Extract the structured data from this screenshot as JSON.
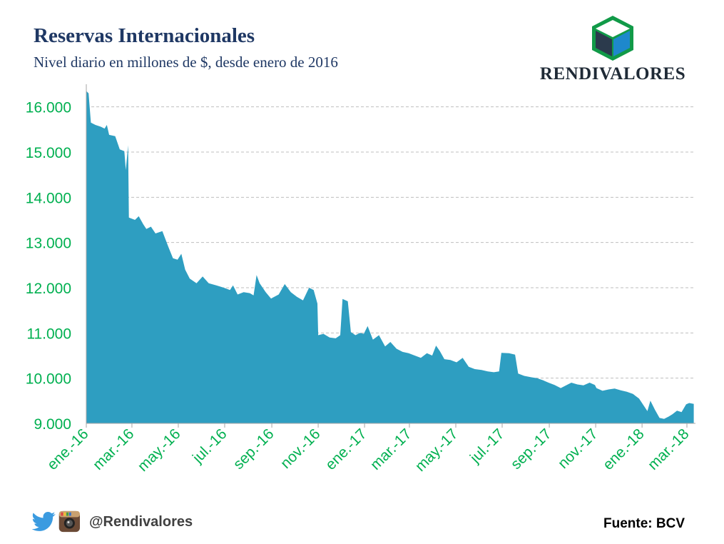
{
  "header": {
    "title": "Reservas Internacionales",
    "subtitle": "Nivel diario en millones de $, desde enero de 2016"
  },
  "logo": {
    "text": "RENDIVALORES",
    "icon": "cube-logo-icon"
  },
  "footer": {
    "handle": "@Rendivalores",
    "source": "Fuente: BCV",
    "icons": [
      "twitter-icon",
      "instagram-icon"
    ]
  },
  "colors": {
    "area": "#2e9ec1",
    "tick_labels": "#00b050",
    "title": "#1f3864",
    "grid": "#bfbfbf"
  },
  "chart_data": {
    "type": "area",
    "title": "Reservas Internacionales",
    "subtitle": "Nivel diario en millones de $, desde enero de 2016",
    "xlabel": "",
    "ylabel": "",
    "ylim": [
      9000,
      16500
    ],
    "xlim": [
      "2016-01-01",
      "2018-03-10"
    ],
    "grid": "horizontal dashed",
    "legend": "none",
    "y_ticks": [
      9000,
      10000,
      11000,
      12000,
      13000,
      14000,
      15000,
      16000
    ],
    "y_tick_labels": [
      "9.000",
      "10.000",
      "11.000",
      "12.000",
      "13.000",
      "14.000",
      "15.000",
      "16.000"
    ],
    "x_ticks": [
      "2016-01-01",
      "2016-03-01",
      "2016-05-01",
      "2016-07-01",
      "2016-09-01",
      "2016-11-01",
      "2017-01-01",
      "2017-03-01",
      "2017-05-01",
      "2017-07-01",
      "2017-09-01",
      "2017-11-01",
      "2018-01-01",
      "2018-03-01"
    ],
    "x_tick_labels": [
      "ene.-16",
      "mar.-16",
      "may.-16",
      "jul.-16",
      "sep.-16",
      "nov.-16",
      "ene.-17",
      "mar.-17",
      "may.-17",
      "jul.-17",
      "sep.-17",
      "nov.-17",
      "ene.-18",
      "mar.-18"
    ],
    "series": [
      {
        "points": [
          [
            "2016-01-01",
            16350
          ],
          [
            "2016-01-04",
            16300
          ],
          [
            "2016-01-07",
            15650
          ],
          [
            "2016-01-13",
            15600
          ],
          [
            "2016-01-20",
            15560
          ],
          [
            "2016-01-25",
            15520
          ],
          [
            "2016-01-28",
            15600
          ],
          [
            "2016-01-31",
            15380
          ],
          [
            "2016-02-08",
            15350
          ],
          [
            "2016-02-14",
            15060
          ],
          [
            "2016-02-20",
            15020
          ],
          [
            "2016-02-22",
            14600
          ],
          [
            "2016-02-25",
            15150
          ],
          [
            "2016-02-26",
            13550
          ],
          [
            "2016-03-05",
            13500
          ],
          [
            "2016-03-10",
            13580
          ],
          [
            "2016-03-16",
            13400
          ],
          [
            "2016-03-20",
            13300
          ],
          [
            "2016-03-26",
            13350
          ],
          [
            "2016-04-01",
            13200
          ],
          [
            "2016-04-10",
            13250
          ],
          [
            "2016-04-18",
            12900
          ],
          [
            "2016-04-24",
            12650
          ],
          [
            "2016-04-30",
            12620
          ],
          [
            "2016-05-05",
            12750
          ],
          [
            "2016-05-10",
            12400
          ],
          [
            "2016-05-16",
            12200
          ],
          [
            "2016-05-25",
            12100
          ],
          [
            "2016-06-02",
            12250
          ],
          [
            "2016-06-10",
            12100
          ],
          [
            "2016-06-20",
            12050
          ],
          [
            "2016-06-30",
            12000
          ],
          [
            "2016-07-08",
            11950
          ],
          [
            "2016-07-12",
            12050
          ],
          [
            "2016-07-18",
            11850
          ],
          [
            "2016-07-26",
            11900
          ],
          [
            "2016-08-03",
            11880
          ],
          [
            "2016-08-08",
            11830
          ],
          [
            "2016-08-12",
            12280
          ],
          [
            "2016-08-16",
            12100
          ],
          [
            "2016-08-24",
            11900
          ],
          [
            "2016-08-31",
            11760
          ],
          [
            "2016-09-10",
            11850
          ],
          [
            "2016-09-18",
            12080
          ],
          [
            "2016-09-26",
            11900
          ],
          [
            "2016-10-04",
            11800
          ],
          [
            "2016-10-12",
            11720
          ],
          [
            "2016-10-20",
            12000
          ],
          [
            "2016-10-26",
            11950
          ],
          [
            "2016-10-31",
            11650
          ],
          [
            "2016-11-01",
            10950
          ],
          [
            "2016-11-08",
            10980
          ],
          [
            "2016-11-16",
            10900
          ],
          [
            "2016-11-24",
            10880
          ],
          [
            "2016-11-30",
            10950
          ],
          [
            "2016-12-03",
            11750
          ],
          [
            "2016-12-10",
            11700
          ],
          [
            "2016-12-14",
            11020
          ],
          [
            "2016-12-20",
            10950
          ],
          [
            "2016-12-26",
            11000
          ],
          [
            "2016-12-31",
            10980
          ],
          [
            "2017-01-05",
            11150
          ],
          [
            "2017-01-12",
            10850
          ],
          [
            "2017-01-20",
            10950
          ],
          [
            "2017-01-28",
            10700
          ],
          [
            "2017-02-04",
            10800
          ],
          [
            "2017-02-12",
            10650
          ],
          [
            "2017-02-20",
            10580
          ],
          [
            "2017-02-28",
            10550
          ],
          [
            "2017-03-08",
            10500
          ],
          [
            "2017-03-16",
            10450
          ],
          [
            "2017-03-24",
            10550
          ],
          [
            "2017-03-31",
            10500
          ],
          [
            "2017-04-05",
            10720
          ],
          [
            "2017-04-10",
            10600
          ],
          [
            "2017-04-16",
            10420
          ],
          [
            "2017-04-24",
            10400
          ],
          [
            "2017-05-02",
            10350
          ],
          [
            "2017-05-10",
            10450
          ],
          [
            "2017-05-18",
            10250
          ],
          [
            "2017-05-26",
            10200
          ],
          [
            "2017-06-04",
            10180
          ],
          [
            "2017-06-12",
            10150
          ],
          [
            "2017-06-20",
            10130
          ],
          [
            "2017-06-27",
            10150
          ],
          [
            "2017-06-30",
            10560
          ],
          [
            "2017-07-10",
            10550
          ],
          [
            "2017-07-18",
            10520
          ],
          [
            "2017-07-22",
            10100
          ],
          [
            "2017-07-30",
            10050
          ],
          [
            "2017-08-08",
            10020
          ],
          [
            "2017-08-16",
            10000
          ],
          [
            "2017-08-24",
            9950
          ],
          [
            "2017-08-31",
            9900
          ],
          [
            "2017-09-08",
            9850
          ],
          [
            "2017-09-16",
            9780
          ],
          [
            "2017-09-24",
            9850
          ],
          [
            "2017-09-30",
            9900
          ],
          [
            "2017-10-08",
            9860
          ],
          [
            "2017-10-16",
            9840
          ],
          [
            "2017-10-24",
            9900
          ],
          [
            "2017-10-31",
            9850
          ],
          [
            "2017-11-02",
            9780
          ],
          [
            "2017-11-10",
            9720
          ],
          [
            "2017-11-18",
            9750
          ],
          [
            "2017-11-26",
            9770
          ],
          [
            "2017-12-04",
            9730
          ],
          [
            "2017-12-12",
            9700
          ],
          [
            "2017-12-20",
            9650
          ],
          [
            "2017-12-28",
            9550
          ],
          [
            "2018-01-03",
            9400
          ],
          [
            "2018-01-08",
            9270
          ],
          [
            "2018-01-12",
            9500
          ],
          [
            "2018-01-18",
            9300
          ],
          [
            "2018-01-24",
            9120
          ],
          [
            "2018-01-30",
            9100
          ],
          [
            "2018-02-05",
            9150
          ],
          [
            "2018-02-10",
            9200
          ],
          [
            "2018-02-16",
            9280
          ],
          [
            "2018-02-22",
            9250
          ],
          [
            "2018-02-28",
            9420
          ],
          [
            "2018-03-04",
            9450
          ],
          [
            "2018-03-10",
            9430
          ]
        ]
      }
    ]
  }
}
